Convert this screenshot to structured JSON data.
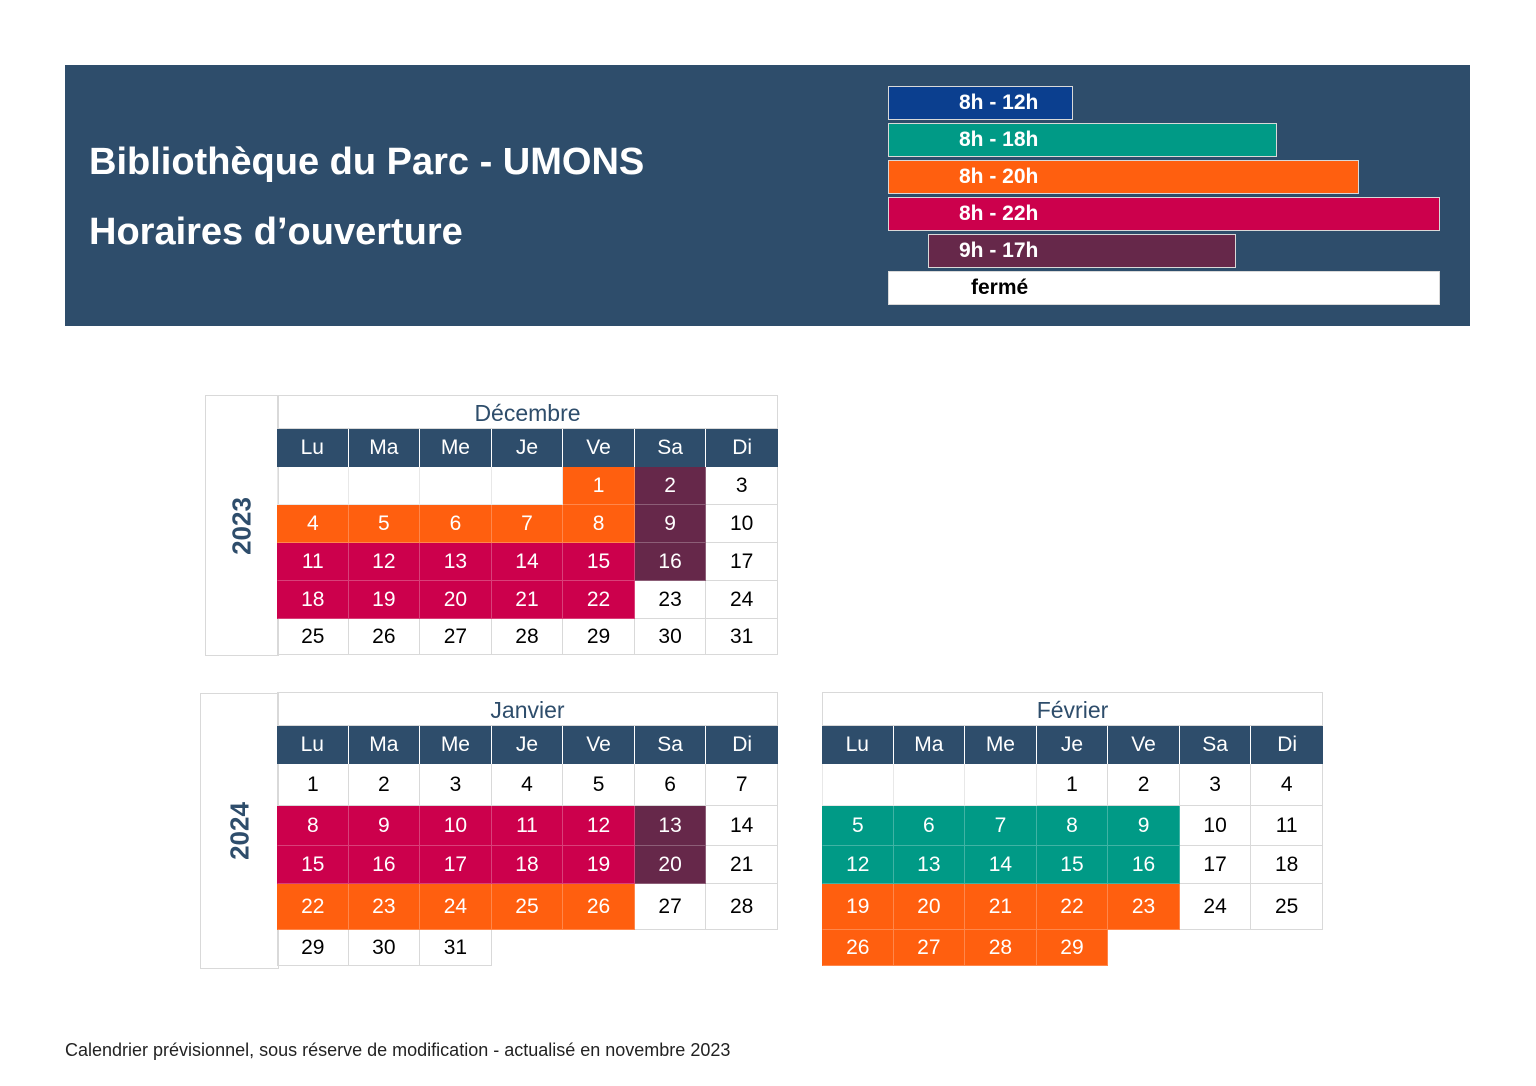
{
  "header": {
    "title": "Bibliothèque du Parc - UMONS",
    "subtitle": "Horaires d’ouverture"
  },
  "colors": {
    "banner": "#2e4d6b",
    "h8_12": "#0b3f8f",
    "h8_18": "#009a86",
    "h8_20": "#ff5f0f",
    "h8_22": "#cc004c",
    "h9_17": "#66284a",
    "closed": "#ffffff"
  },
  "legend": [
    {
      "label": "8h - 12h",
      "key": "h8_12"
    },
    {
      "label": "8h - 18h",
      "key": "h8_18"
    },
    {
      "label": "8h - 20h",
      "key": "h8_20"
    },
    {
      "label": "8h - 22h",
      "key": "h8_22"
    },
    {
      "label": "9h - 17h",
      "key": "h9_17"
    },
    {
      "label": "fermé",
      "key": "closed"
    }
  ],
  "weekdays": [
    "Lu",
    "Ma",
    "Me",
    "Je",
    "Ve",
    "Sa",
    "Di"
  ],
  "years": [
    {
      "label": "2023"
    },
    {
      "label": "2024"
    }
  ],
  "months": [
    {
      "name": "Décembre",
      "weeks": [
        [
          null,
          null,
          null,
          null,
          [
            "1",
            "h8_20"
          ],
          [
            "2",
            "h9_17"
          ],
          [
            "3",
            "closed"
          ]
        ],
        [
          [
            "4",
            "h8_20"
          ],
          [
            "5",
            "h8_20"
          ],
          [
            "6",
            "h8_20"
          ],
          [
            "7",
            "h8_20"
          ],
          [
            "8",
            "h8_20"
          ],
          [
            "9",
            "h9_17"
          ],
          [
            "10",
            "closed"
          ]
        ],
        [
          [
            "11",
            "h8_22"
          ],
          [
            "12",
            "h8_22"
          ],
          [
            "13",
            "h8_22"
          ],
          [
            "14",
            "h8_22"
          ],
          [
            "15",
            "h8_22"
          ],
          [
            "16",
            "h9_17"
          ],
          [
            "17",
            "closed"
          ]
        ],
        [
          [
            "18",
            "h8_22"
          ],
          [
            "19",
            "h8_22"
          ],
          [
            "20",
            "h8_22"
          ],
          [
            "21",
            "h8_22"
          ],
          [
            "22",
            "h8_22"
          ],
          [
            "23",
            "closed"
          ],
          [
            "24",
            "closed"
          ]
        ],
        [
          [
            "25",
            "closed"
          ],
          [
            "26",
            "closed"
          ],
          [
            "27",
            "closed"
          ],
          [
            "28",
            "closed"
          ],
          [
            "29",
            "closed"
          ],
          [
            "30",
            "closed"
          ],
          [
            "31",
            "closed"
          ]
        ]
      ]
    },
    {
      "name": "Janvier",
      "weeks": [
        [
          [
            "1",
            "closed"
          ],
          [
            "2",
            "closed"
          ],
          [
            "3",
            "closed"
          ],
          [
            "4",
            "closed"
          ],
          [
            "5",
            "closed"
          ],
          [
            "6",
            "closed"
          ],
          [
            "7",
            "closed"
          ]
        ],
        [
          [
            "8",
            "h8_22"
          ],
          [
            "9",
            "h8_22"
          ],
          [
            "10",
            "h8_22"
          ],
          [
            "11",
            "h8_22"
          ],
          [
            "12",
            "h8_22"
          ],
          [
            "13",
            "h9_17"
          ],
          [
            "14",
            "closed"
          ]
        ],
        [
          [
            "15",
            "h8_22"
          ],
          [
            "16",
            "h8_22"
          ],
          [
            "17",
            "h8_22"
          ],
          [
            "18",
            "h8_22"
          ],
          [
            "19",
            "h8_22"
          ],
          [
            "20",
            "h9_17"
          ],
          [
            "21",
            "closed"
          ]
        ],
        [
          [
            "22",
            "h8_20"
          ],
          [
            "23",
            "h8_20"
          ],
          [
            "24",
            "h8_20"
          ],
          [
            "25",
            "h8_20"
          ],
          [
            "26",
            "h8_20"
          ],
          [
            "27",
            "closed"
          ],
          [
            "28",
            "closed"
          ]
        ],
        [
          [
            "29",
            "closed"
          ],
          [
            "30",
            "closed"
          ],
          [
            "31",
            "closed"
          ],
          "blank",
          "blank",
          "blank",
          "blank"
        ]
      ]
    },
    {
      "name": "Février",
      "weeks": [
        [
          null,
          null,
          null,
          [
            "1",
            "closed"
          ],
          [
            "2",
            "closed"
          ],
          [
            "3",
            "closed"
          ],
          [
            "4",
            "closed"
          ]
        ],
        [
          [
            "5",
            "h8_18"
          ],
          [
            "6",
            "h8_18"
          ],
          [
            "7",
            "h8_18"
          ],
          [
            "8",
            "h8_18"
          ],
          [
            "9",
            "h8_18"
          ],
          [
            "10",
            "closed"
          ],
          [
            "11",
            "closed"
          ]
        ],
        [
          [
            "12",
            "h8_18"
          ],
          [
            "13",
            "h8_18"
          ],
          [
            "14",
            "h8_18"
          ],
          [
            "15",
            "h8_18"
          ],
          [
            "16",
            "h8_18"
          ],
          [
            "17",
            "closed"
          ],
          [
            "18",
            "closed"
          ]
        ],
        [
          [
            "19",
            "h8_20"
          ],
          [
            "20",
            "h8_20"
          ],
          [
            "21",
            "h8_20"
          ],
          [
            "22",
            "h8_20"
          ],
          [
            "23",
            "h8_20"
          ],
          [
            "24",
            "closed"
          ],
          [
            "25",
            "closed"
          ]
        ],
        [
          [
            "26",
            "h8_20"
          ],
          [
            "27",
            "h8_20"
          ],
          [
            "28",
            "h8_20"
          ],
          [
            "29",
            "h8_20"
          ],
          "blank",
          "blank",
          "blank"
        ]
      ]
    }
  ],
  "footer": "Calendrier prévisionnel, sous réserve de modification - actualisé en novembre 2023"
}
